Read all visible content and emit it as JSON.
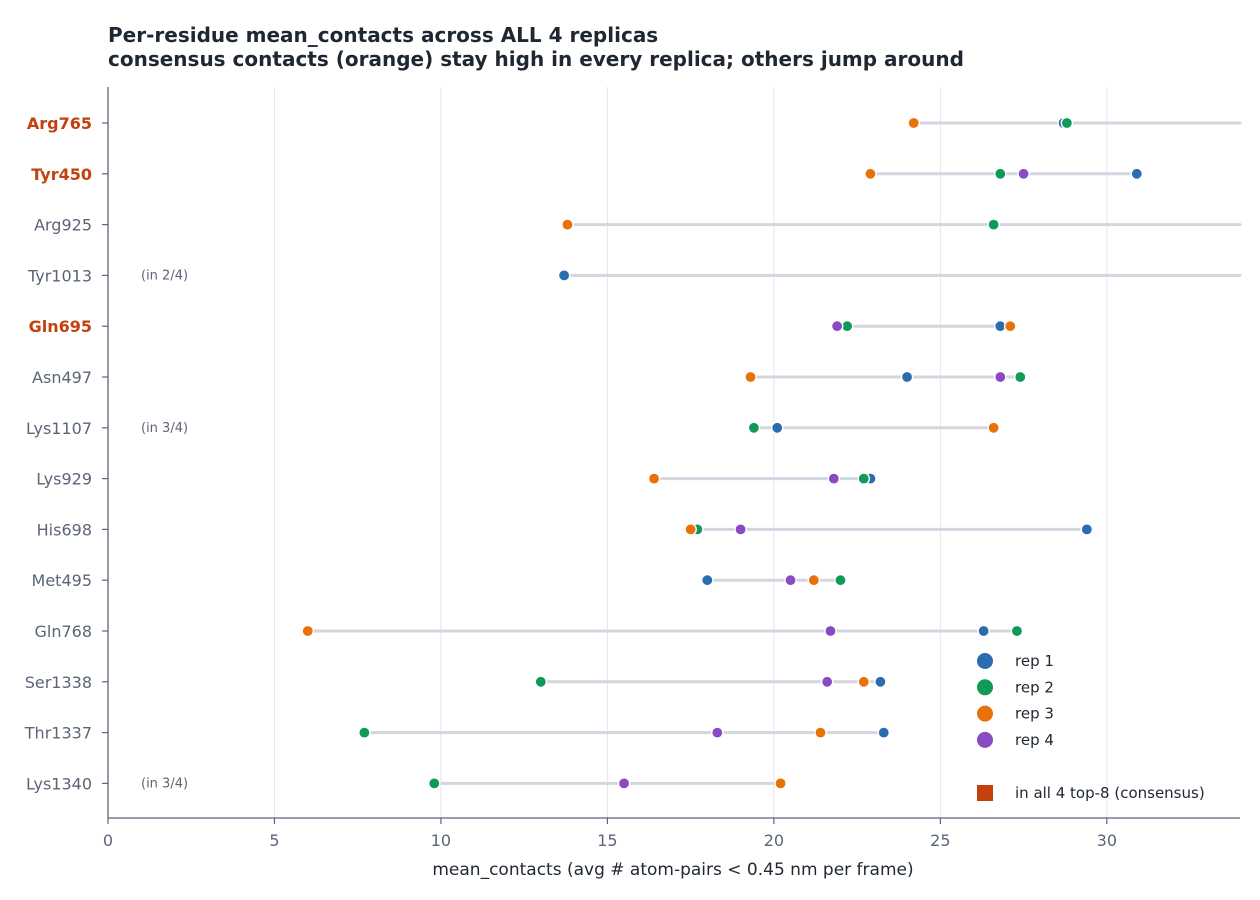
{
  "chart_data": {
    "type": "dot-range",
    "title": "Per-residue mean_contacts across ALL 4 replicas",
    "subtitle": "consensus contacts (orange) stay high in every replica; others jump around",
    "xlabel": "mean_contacts  (avg # atom-pairs < 0.45 nm per frame)",
    "xlim": [
      0,
      34
    ],
    "xticks": [
      0,
      5,
      10,
      15,
      20,
      25,
      30
    ],
    "grid": "vertical",
    "legend_position": "lower-right",
    "series": [
      {
        "name": "rep 1",
        "color": "#2b6cb0"
      },
      {
        "name": "rep 2",
        "color": "#109a57"
      },
      {
        "name": "rep 3",
        "color": "#e8710a"
      },
      {
        "name": "rep 4",
        "color": "#8a4bc2"
      }
    ],
    "consensus_legend": {
      "label": "in all 4 top-8 (consensus)",
      "color": "#c2410c"
    },
    "residues": [
      {
        "label": "Arg765",
        "consensus": true,
        "note": "",
        "values": [
          28.7,
          28.8,
          24.2,
          null
        ],
        "range": [
          24.2,
          34
        ]
      },
      {
        "label": "Tyr450",
        "consensus": true,
        "note": "",
        "values": [
          30.9,
          26.8,
          22.9,
          27.5
        ],
        "range": [
          22.9,
          30.9
        ]
      },
      {
        "label": "Arg925",
        "consensus": false,
        "note": "",
        "values": [
          null,
          26.6,
          13.8,
          null
        ],
        "range": [
          13.8,
          34
        ]
      },
      {
        "label": "Tyr1013",
        "consensus": false,
        "note": "(in 2/4)",
        "values": [
          13.7,
          null,
          null,
          null
        ],
        "range": [
          13.7,
          34
        ]
      },
      {
        "label": "Gln695",
        "consensus": true,
        "note": "",
        "values": [
          26.8,
          22.2,
          27.1,
          21.9
        ],
        "range": [
          21.9,
          27.1
        ]
      },
      {
        "label": "Asn497",
        "consensus": false,
        "note": "",
        "values": [
          24.0,
          27.4,
          19.3,
          26.8
        ],
        "range": [
          19.3,
          27.4
        ]
      },
      {
        "label": "Lys1107",
        "consensus": false,
        "note": "(in 3/4)",
        "values": [
          20.1,
          19.4,
          26.6,
          null
        ],
        "range": [
          19.4,
          26.6
        ]
      },
      {
        "label": "Lys929",
        "consensus": false,
        "note": "",
        "values": [
          22.9,
          22.7,
          16.4,
          21.8
        ],
        "range": [
          16.4,
          22.9
        ]
      },
      {
        "label": "His698",
        "consensus": false,
        "note": "",
        "values": [
          29.4,
          17.7,
          17.5,
          19.0
        ],
        "range": [
          17.5,
          29.4
        ]
      },
      {
        "label": "Met495",
        "consensus": false,
        "note": "",
        "values": [
          18.0,
          22.0,
          21.2,
          20.5
        ],
        "range": [
          18.0,
          22.0
        ]
      },
      {
        "label": "Gln768",
        "consensus": false,
        "note": "",
        "values": [
          26.3,
          27.3,
          6.0,
          21.7
        ],
        "range": [
          6.0,
          27.3
        ]
      },
      {
        "label": "Ser1338",
        "consensus": false,
        "note": "",
        "values": [
          23.2,
          13.0,
          22.7,
          21.6
        ],
        "range": [
          13.0,
          23.2
        ]
      },
      {
        "label": "Thr1337",
        "consensus": false,
        "note": "",
        "values": [
          23.3,
          7.7,
          21.4,
          18.3
        ],
        "range": [
          7.7,
          23.3
        ]
      },
      {
        "label": "Lys1340",
        "consensus": false,
        "note": "(in 3/4)",
        "values": [
          null,
          9.8,
          20.2,
          15.5
        ],
        "range": [
          9.8,
          20.2
        ]
      }
    ]
  }
}
